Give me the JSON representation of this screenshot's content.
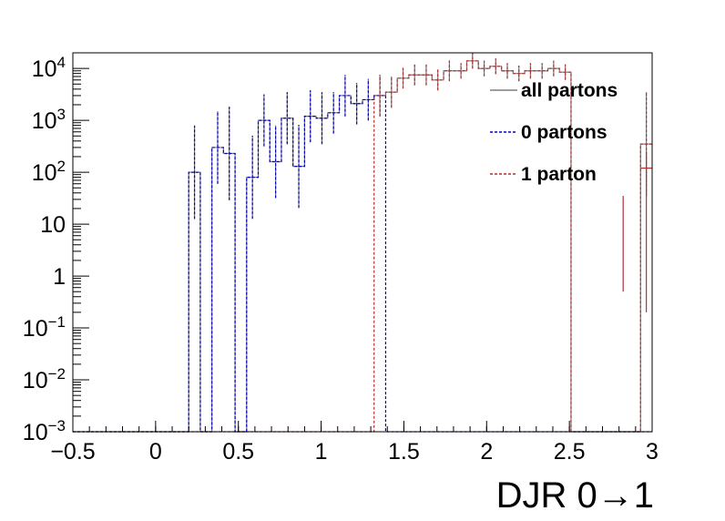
{
  "chart_data": {
    "type": "step-histogram",
    "title": "",
    "xlabel": "DJR 0→1",
    "ylabel": "",
    "xlim": [
      -0.5,
      3.0
    ],
    "ylim": [
      0.001,
      20000
    ],
    "yscale": "log",
    "grid": false,
    "legend_position": "top-right",
    "x_tick_labels": [
      "−0.5",
      "0",
      "0.5",
      "1",
      "1.5",
      "2",
      "2.5",
      "3"
    ],
    "x_tick_values": [
      -0.5,
      0,
      0.5,
      1,
      1.5,
      2,
      2.5,
      3
    ],
    "y_tick_labels": [
      {
        "base": "10",
        "exp": "−3",
        "value": 0.001
      },
      {
        "base": "10",
        "exp": "−2",
        "value": 0.01
      },
      {
        "base": "10",
        "exp": "−1",
        "value": 0.1
      },
      {
        "base": "1",
        "exp": "",
        "value": 1
      },
      {
        "base": "10",
        "exp": "",
        "value": 10
      },
      {
        "base": "10",
        "exp": "2",
        "value": 100
      },
      {
        "base": "10",
        "exp": "3",
        "value": 1000
      },
      {
        "base": "10",
        "exp": "4",
        "value": 10000
      }
    ],
    "bin_width": 0.07,
    "bin_start": -0.5,
    "series": [
      {
        "name": "all partons",
        "color": "#7f7f7f",
        "dash": "solid",
        "values": [
          0.001,
          0.001,
          0.001,
          0.001,
          0.001,
          0.001,
          0.001,
          0.001,
          0.001,
          0.001,
          100,
          0.001,
          300,
          230,
          0.001,
          80,
          1000,
          160,
          1100,
          130,
          1200,
          1100,
          1400,
          3000,
          2100,
          2500,
          3000,
          3500,
          6500,
          7500,
          7500,
          6000,
          9000,
          9000,
          14000,
          10000,
          11000,
          9000,
          8000,
          9000,
          9000,
          10000,
          8500,
          0.001,
          0.001,
          0.001,
          0.001,
          0.001,
          0.001,
          350
        ],
        "errors": [
          0,
          0,
          0,
          0,
          0,
          0,
          0,
          0,
          0,
          0,
          0.9,
          0,
          0.7,
          0.9,
          0,
          0.8,
          0.5,
          0.7,
          0.5,
          0.8,
          0.5,
          0.5,
          0.4,
          0.4,
          0.4,
          0.4,
          0.4,
          0.3,
          0.2,
          0.2,
          0.2,
          0.2,
          0.2,
          0.15,
          0.15,
          0.15,
          0.15,
          0.15,
          0.15,
          0.15,
          0.15,
          0.15,
          0.15,
          0,
          0,
          0,
          0,
          0,
          0,
          1.0
        ]
      },
      {
        "name": "0 partons",
        "color": "#0000cc",
        "dash": "dotted",
        "values": [
          0.001,
          0.001,
          0.001,
          0.001,
          0.001,
          0.001,
          0.001,
          0.001,
          0.001,
          0.001,
          100,
          0.001,
          300,
          230,
          0.001,
          80,
          1000,
          160,
          1100,
          130,
          1200,
          1100,
          1400,
          3000,
          2100,
          2500,
          3000,
          0.001,
          0.001,
          0.001,
          0.001,
          0.001,
          0.001,
          0.001,
          0.001,
          0.001,
          0.001,
          0.001,
          0.001,
          0.001,
          0.001,
          0.001,
          0.001,
          0.001,
          0.001,
          0.001,
          0.001,
          0.001,
          0.001,
          0.001
        ],
        "errors": [
          0,
          0,
          0,
          0,
          0,
          0,
          0,
          0,
          0,
          0,
          0.9,
          0,
          0.7,
          0.9,
          0,
          0.8,
          0.5,
          0.7,
          0.5,
          0.8,
          0.5,
          0.5,
          0.4,
          0.4,
          0.4,
          0.4,
          0.4,
          0,
          0,
          0,
          0,
          0,
          0,
          0,
          0,
          0,
          0,
          0,
          0,
          0,
          0,
          0,
          0,
          0,
          0,
          0,
          0,
          0,
          0,
          0
        ]
      },
      {
        "name": "1 parton",
        "color": "#b03030",
        "dash": "dotted",
        "values": [
          0.001,
          0.001,
          0.001,
          0.001,
          0.001,
          0.001,
          0.001,
          0.001,
          0.001,
          0.001,
          0.001,
          0.001,
          0.001,
          0.001,
          0.001,
          0.001,
          0.001,
          0.001,
          0.001,
          0.001,
          0.001,
          0.001,
          0.001,
          0.001,
          0.001,
          0.001,
          3000,
          3500,
          6500,
          7500,
          7500,
          6000,
          9000,
          9000,
          14000,
          10000,
          11000,
          9000,
          8000,
          9000,
          9000,
          10000,
          8500,
          0.001,
          0.001,
          0.001,
          0.001,
          0.001,
          0.001,
          350
        ],
        "errors": [
          0,
          0,
          0,
          0,
          0,
          0,
          0,
          0,
          0,
          0,
          0,
          0,
          0,
          0,
          0,
          0,
          0,
          0,
          0,
          0,
          0,
          0,
          0,
          0,
          0,
          0,
          0.4,
          0.3,
          0.2,
          0.2,
          0.2,
          0.2,
          0.2,
          0.15,
          0.15,
          0.15,
          0.15,
          0.15,
          0.15,
          0.15,
          0.15,
          0.15,
          0.15,
          0,
          0,
          0,
          0,
          0,
          0,
          1.0
        ]
      }
    ],
    "extra_bins": [
      {
        "x0": 2.79,
        "x1": 2.86,
        "value": 0.001,
        "err_lo": 0.5,
        "err_hi": 35
      },
      {
        "x0": 2.93,
        "x1": 3.0,
        "value": 120,
        "err_lo": 0.2,
        "err_hi": 250
      }
    ]
  }
}
